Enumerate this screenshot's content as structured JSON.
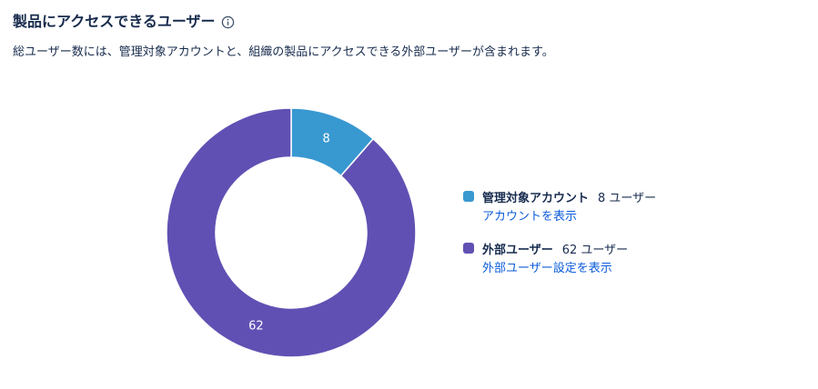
{
  "header": {
    "title": "製品にアクセスできるユーザー",
    "info_icon": "info-icon"
  },
  "subtitle": "総ユーザー数には、管理対象アカウントと、組織の製品にアクセスできる外部ユーザーが含まれます。",
  "legend": [
    {
      "name": "管理対象アカウント",
      "count_text": "8 ユーザー",
      "link": "アカウントを表示",
      "color": "#3898d0"
    },
    {
      "name": "外部ユーザー",
      "count_text": "62 ユーザー",
      "link": "外部ユーザー設定を表示",
      "color": "#6150b3"
    }
  ],
  "chart_data": {
    "type": "pie",
    "variant": "donut",
    "labels": [
      "管理対象アカウント",
      "外部ユーザー"
    ],
    "values": [
      8,
      62
    ],
    "data_labels": [
      "8",
      "62"
    ],
    "colors": [
      "#3898d0",
      "#6150b3"
    ],
    "legend_position": "right"
  }
}
